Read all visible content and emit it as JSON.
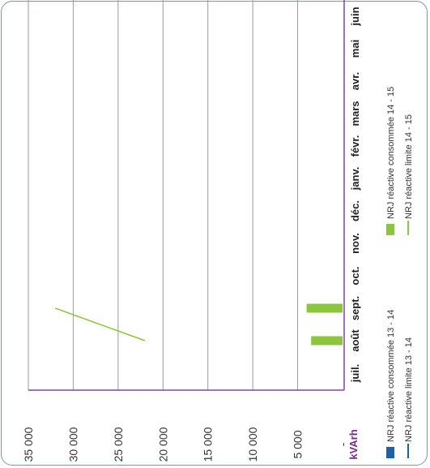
{
  "chart_data": {
    "type": "bar",
    "orientation": "rotated-90",
    "ylabel": "kVArh",
    "ylim": [
      0,
      35000
    ],
    "ytick_values": [
      0,
      5000,
      10000,
      15000,
      20000,
      25000,
      30000,
      35000
    ],
    "ytick_labels": [
      "-",
      "5 000",
      "10 000",
      "15 000",
      "20 000",
      "25 000",
      "30 000",
      "35 000"
    ],
    "categories": [
      "juil.",
      "août",
      "sept.",
      "oct.",
      "nov.",
      "déc.",
      "janv.",
      "févr.",
      "mars",
      "avr.",
      "mai",
      "juin"
    ],
    "grid": true,
    "series": [
      {
        "name": "NRJ réactive consommée 13 - 14",
        "kind": "bar",
        "color": "#1f5fa8",
        "values": [
          null,
          null,
          null,
          null,
          null,
          null,
          null,
          null,
          null,
          null,
          null,
          null
        ]
      },
      {
        "name": "NRJ réactive consommée 14 - 15",
        "kind": "bar",
        "color": "#8cc63f",
        "values": [
          null,
          3500,
          4000,
          null,
          null,
          null,
          null,
          null,
          null,
          null,
          null,
          null
        ]
      },
      {
        "name": "NRJ réactive limite 13 - 14",
        "kind": "line",
        "color": "#1f5fa8",
        "values": [
          null,
          null,
          null,
          null,
          null,
          null,
          null,
          null,
          null,
          null,
          null,
          null
        ]
      },
      {
        "name": "NRJ réactive limite 14 - 15",
        "kind": "line",
        "color": "#8cc63f",
        "values": [
          null,
          22000,
          32000,
          null,
          null,
          null,
          null,
          null,
          null,
          null,
          null,
          null
        ]
      }
    ],
    "legend_position": "bottom"
  }
}
